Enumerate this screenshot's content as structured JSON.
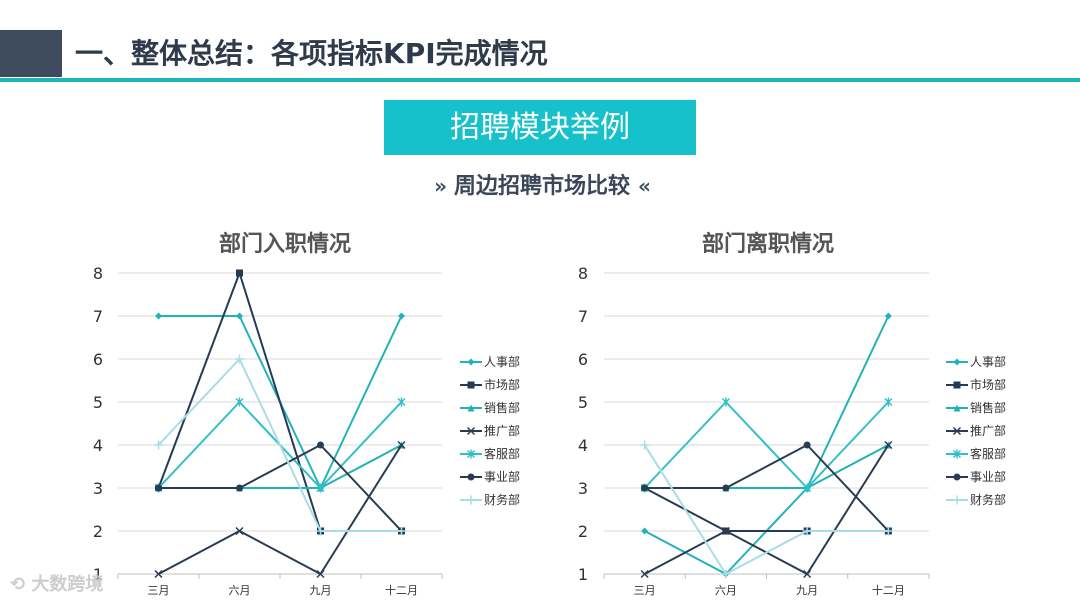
{
  "header": {
    "title": "一、整体总结：各项指标KPI完成情况"
  },
  "banner": {
    "label": "招聘模块举例"
  },
  "subtitle": {
    "text": "周边招聘市场比较",
    "left_glyph": "»",
    "right_glyph": "«"
  },
  "watermark": {
    "text": "大数跨境"
  },
  "colors": {
    "accent": "#1fb3c1",
    "banner": "#17c1cc",
    "dark": "#3f4b5f"
  },
  "chart_data": [
    {
      "type": "line",
      "title": "部门入职情况",
      "categories": [
        "三月",
        "六月",
        "九月",
        "十二月"
      ],
      "ylim": [
        1,
        8
      ],
      "yticks": [
        1,
        2,
        3,
        4,
        5,
        6,
        7,
        8
      ],
      "grid": true,
      "legend_position": "right",
      "series": [
        {
          "name": "人事部",
          "values": [
            7,
            7,
            3,
            7
          ],
          "color": "#22b2bb",
          "marker": "diamond"
        },
        {
          "name": "市场部",
          "values": [
            3,
            8,
            2,
            2
          ],
          "color": "#243b55",
          "marker": "square"
        },
        {
          "name": "销售部",
          "values": [
            3,
            3,
            3,
            4
          ],
          "color": "#1fb3b5",
          "marker": "triangle"
        },
        {
          "name": "推广部",
          "values": [
            1,
            2,
            1,
            4
          ],
          "color": "#2a3c52",
          "marker": "x"
        },
        {
          "name": "客服部",
          "values": [
            3,
            5,
            3,
            5
          ],
          "color": "#2fbfc8",
          "marker": "star"
        },
        {
          "name": "事业部",
          "values": [
            3,
            3,
            4,
            2
          ],
          "color": "#2a3c52",
          "marker": "circle"
        },
        {
          "name": "财务部",
          "values": [
            4,
            6,
            2,
            2
          ],
          "color": "#a8dde5",
          "marker": "plus"
        }
      ]
    },
    {
      "type": "line",
      "title": "部门离职情况",
      "categories": [
        "三月",
        "六月",
        "九月",
        "十二月"
      ],
      "ylim": [
        1,
        8
      ],
      "yticks": [
        1,
        2,
        3,
        4,
        5,
        6,
        7,
        8
      ],
      "grid": true,
      "legend_position": "right",
      "series": [
        {
          "name": "人事部",
          "values": [
            2,
            1,
            3,
            7
          ],
          "color": "#22b2bb",
          "marker": "diamond"
        },
        {
          "name": "市场部",
          "values": [
            3,
            2,
            2,
            2
          ],
          "color": "#243b55",
          "marker": "square"
        },
        {
          "name": "销售部",
          "values": [
            3,
            3,
            3,
            4
          ],
          "color": "#1fb3b5",
          "marker": "triangle"
        },
        {
          "name": "推广部",
          "values": [
            1,
            2,
            1,
            4
          ],
          "color": "#2a3c52",
          "marker": "x"
        },
        {
          "name": "客服部",
          "values": [
            3,
            5,
            3,
            5
          ],
          "color": "#2fbfc8",
          "marker": "star"
        },
        {
          "name": "事业部",
          "values": [
            3,
            3,
            4,
            2
          ],
          "color": "#2a3c52",
          "marker": "circle"
        },
        {
          "name": "财务部",
          "values": [
            4,
            1,
            2,
            2
          ],
          "color": "#a8dde5",
          "marker": "plus"
        }
      ]
    }
  ]
}
